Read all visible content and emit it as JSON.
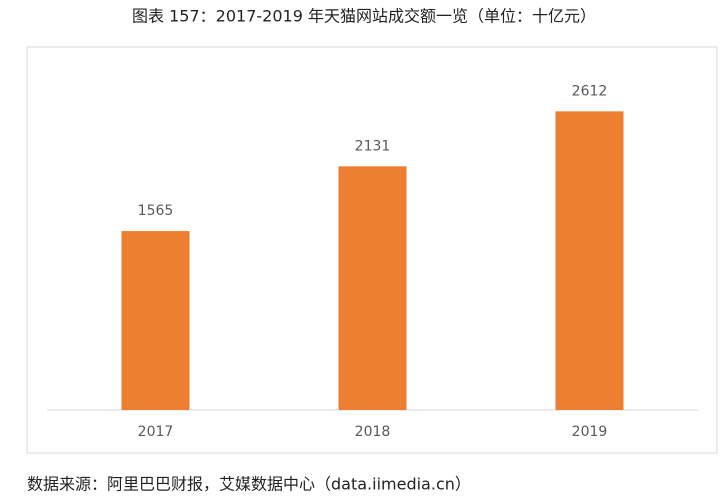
{
  "chart_data": {
    "type": "bar",
    "title": "图表 157：2017-2019 年天猫网站成交额一览（单位：十亿元）",
    "categories": [
      "2017",
      "2018",
      "2019"
    ],
    "values": [
      1565,
      2131,
      2612
    ],
    "color": "#ed7d31",
    "ylim": [
      0,
      3000
    ]
  },
  "source": "数据来源：阿里巴巴财报，艾媒数据中心（data.iimedia.cn）"
}
